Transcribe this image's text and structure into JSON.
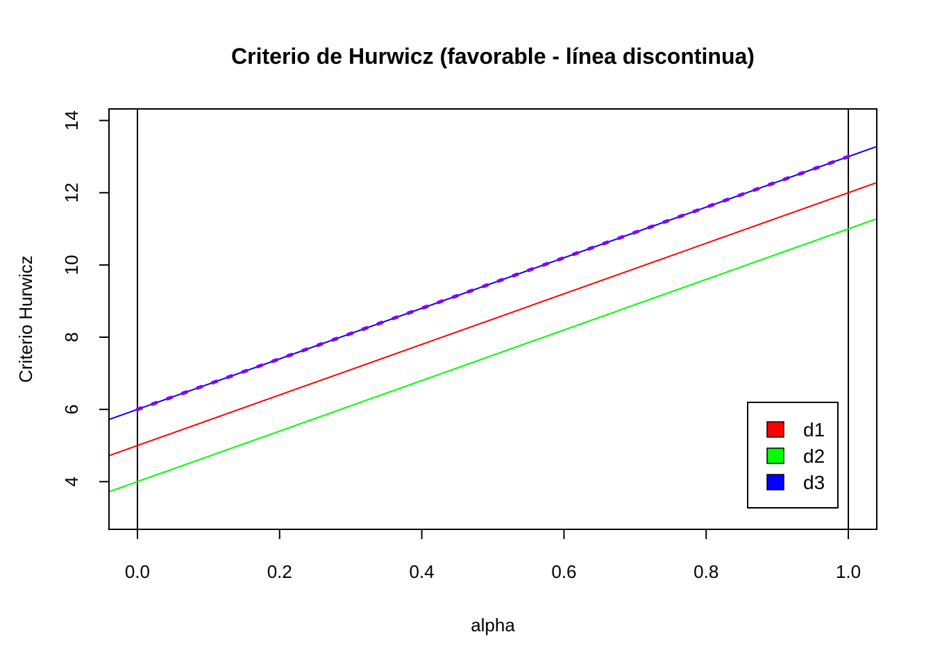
{
  "chart_data": {
    "type": "line",
    "title": "Criterio de Hurwicz (favorable - línea discontinua)",
    "xlabel": "alpha",
    "ylabel": "Criterio Hurwicz",
    "xlim": [
      -0.04,
      1.04
    ],
    "ylim": [
      2.68,
      14.32
    ],
    "x_ticks": [
      "0.0",
      "0.2",
      "0.4",
      "0.6",
      "0.8",
      "1.0"
    ],
    "x_tick_values": [
      0,
      0.2,
      0.4,
      0.6,
      0.8,
      1.0
    ],
    "y_ticks": [
      "4",
      "6",
      "8",
      "10",
      "12",
      "14"
    ],
    "y_tick_values": [
      4,
      6,
      8,
      10,
      12,
      14
    ],
    "vertical_lines": [
      0,
      1
    ],
    "series": [
      {
        "name": "d1",
        "color": "#ff0000",
        "intercept": 5,
        "slope": 7,
        "style": "solid"
      },
      {
        "name": "d2",
        "color": "#00ff00",
        "intercept": 4,
        "slope": 7,
        "style": "solid"
      },
      {
        "name": "d3",
        "color": "#0000ff",
        "intercept": 6,
        "slope": 7,
        "style": "solid"
      }
    ],
    "favorable": {
      "color": "#8000ff",
      "intercept": 6,
      "slope": 7,
      "style": "dashed",
      "x_range": [
        0,
        1
      ]
    },
    "legend": {
      "position": "bottom-right",
      "entries": [
        {
          "label": "d1",
          "color": "#ff0000"
        },
        {
          "label": "d2",
          "color": "#00ff00"
        },
        {
          "label": "d3",
          "color": "#0000ff"
        }
      ]
    }
  }
}
